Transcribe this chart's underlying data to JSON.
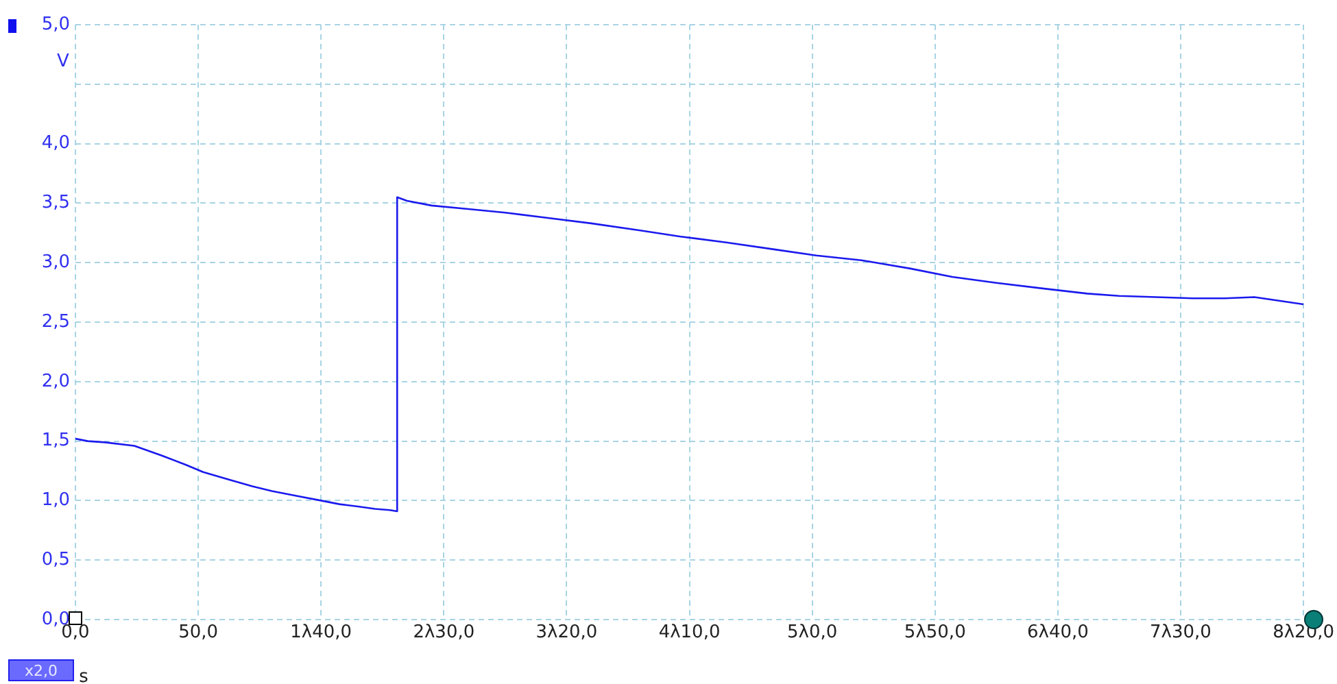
{
  "chart_data": {
    "type": "line",
    "xlabel": "s",
    "ylabel": "V",
    "annotations": [
      "x2,0"
    ],
    "x": [
      0,
      5,
      12,
      24,
      35,
      45,
      52,
      62,
      72,
      80,
      90,
      100,
      107.5,
      115,
      122,
      128,
      131,
      131,
      135,
      145,
      160,
      175,
      190.7,
      210,
      230,
      246,
      265,
      285,
      301.6,
      320,
      340,
      357,
      375,
      395,
      412,
      425,
      440,
      455,
      468,
      480,
      490,
      500
    ],
    "series": [
      {
        "color": "#1a1aee",
        "values": [
          1.52,
          1.5,
          1.49,
          1.46,
          1.38,
          1.3,
          1.24,
          1.18,
          1.12,
          1.08,
          1.04,
          1.0,
          0.97,
          0.95,
          0.93,
          0.92,
          0.91,
          3.55,
          3.52,
          3.48,
          3.45,
          3.42,
          3.38,
          3.33,
          3.27,
          3.22,
          3.17,
          3.11,
          3.06,
          3.02,
          2.95,
          2.88,
          2.83,
          2.78,
          2.74,
          2.72,
          2.71,
          2.7,
          2.7,
          2.71,
          2.68,
          2.65
        ]
      }
    ],
    "xlim": [
      0,
      500
    ],
    "xticks": [
      {
        "value": 0,
        "label": "0,0"
      },
      {
        "value": 50,
        "label": "50,0"
      },
      {
        "value": 100,
        "label": "1λ40,0"
      },
      {
        "value": 150,
        "label": "2λ30,0"
      },
      {
        "value": 200,
        "label": "3λ20,0"
      },
      {
        "value": 250,
        "label": "4λ10,0"
      },
      {
        "value": 300,
        "label": "5λ0,0"
      },
      {
        "value": 350,
        "label": "5λ50,0"
      },
      {
        "value": 400,
        "label": "6λ40,0"
      },
      {
        "value": 450,
        "label": "7λ30,0"
      },
      {
        "value": 500,
        "label": "8λ20,0"
      }
    ],
    "ylim": [
      0,
      5
    ],
    "yticks": [
      {
        "value": 0,
        "label": "0,0"
      },
      {
        "value": 0.5,
        "label": "0,5"
      },
      {
        "value": 1,
        "label": "1,0"
      },
      {
        "value": 1.5,
        "label": "1,5"
      },
      {
        "value": 2,
        "label": "2,0"
      },
      {
        "value": 2.5,
        "label": "2,5"
      },
      {
        "value": 3,
        "label": "3,0"
      },
      {
        "value": 3.5,
        "label": "3,5"
      },
      {
        "value": 4,
        "label": "4,0"
      },
      {
        "value": 4.5,
        "label": null
      },
      {
        "value": 5,
        "label": "5,0"
      }
    ],
    "grid": true,
    "line_style": "solid",
    "marker": "none",
    "legend": false
  }
}
